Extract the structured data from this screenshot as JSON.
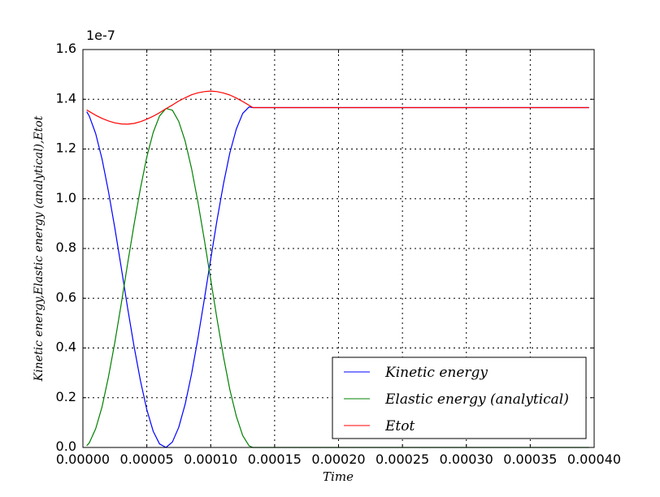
{
  "chart_data": {
    "type": "line",
    "title": "",
    "xlabel": "Time",
    "ylabel": "Kinetic energy,Elastic energy (analytical),Etot",
    "y_offset_label": "1e-7",
    "y_scale": 1e-07,
    "xlim": [
      0,
      0.0004
    ],
    "ylim": [
      0,
      1.6
    ],
    "grid": true,
    "legend_position": "lower-right",
    "x_ticks": [
      0,
      5e-05,
      0.0001,
      0.00015,
      0.0002,
      0.00025,
      0.0003,
      0.00035,
      0.0004
    ],
    "x_tick_labels": [
      "0.00000",
      "0.00005",
      "0.00010",
      "0.00015",
      "0.00020",
      "0.00025",
      "0.00030",
      "0.00035",
      "0.00040"
    ],
    "y_ticks": [
      0,
      0.2,
      0.4,
      0.6,
      0.8,
      1.0,
      1.2,
      1.4,
      1.6
    ],
    "y_tick_labels": [
      "0.0",
      "0.2",
      "0.4",
      "0.6",
      "0.8",
      "1.0",
      "1.2",
      "1.4",
      "1.6"
    ],
    "x": [
      3e-06,
      5e-06,
      1e-05,
      1.5e-05,
      2e-05,
      2.5e-05,
      3e-05,
      3.5e-05,
      4e-05,
      4.5e-05,
      5e-05,
      5.5e-05,
      6e-05,
      6.5e-05,
      7e-05,
      7.5e-05,
      8e-05,
      8.5e-05,
      9e-05,
      9.5e-05,
      0.0001,
      0.000105,
      0.00011,
      0.000115,
      0.00012,
      0.000125,
      0.00013,
      0.000133,
      0.000396
    ],
    "series": [
      {
        "name": "Kinetic energy",
        "color": "#0000ff",
        "values": [
          1.35,
          1.332,
          1.262,
          1.159,
          1.03,
          0.882,
          0.723,
          0.561,
          0.407,
          0.268,
          0.152,
          0.065,
          0.014,
          0.0,
          0.022,
          0.081,
          0.174,
          0.296,
          0.439,
          0.596,
          0.759,
          0.916,
          1.061,
          1.185,
          1.28,
          1.343,
          1.369,
          1.3665,
          1.3665
        ]
      },
      {
        "name": "Elastic energy (analytical)",
        "color": "#008000",
        "values": [
          0.007,
          0.019,
          0.075,
          0.164,
          0.283,
          0.423,
          0.578,
          0.739,
          0.896,
          1.042,
          1.168,
          1.267,
          1.333,
          1.363,
          1.356,
          1.311,
          1.232,
          1.121,
          0.987,
          0.835,
          0.674,
          0.515,
          0.364,
          0.232,
          0.126,
          0.048,
          0.007,
          0.0,
          0.0
        ]
      },
      {
        "name": "Etot",
        "color": "#ff0000",
        "values": [
          1.357,
          1.351,
          1.336,
          1.323,
          1.313,
          1.305,
          1.301,
          1.3,
          1.303,
          1.31,
          1.32,
          1.332,
          1.346,
          1.362,
          1.377,
          1.393,
          1.406,
          1.418,
          1.426,
          1.431,
          1.433,
          1.431,
          1.425,
          1.417,
          1.405,
          1.391,
          1.376,
          1.3665,
          1.3665
        ]
      }
    ]
  }
}
